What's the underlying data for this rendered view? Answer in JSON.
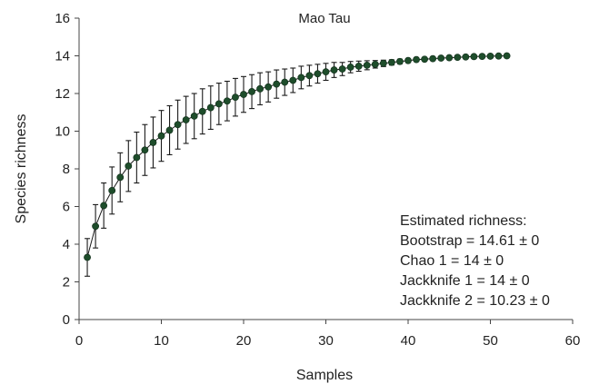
{
  "chart_data": {
    "type": "line",
    "title": "Mao Tau",
    "xlabel": "Samples",
    "ylabel": "Species richness",
    "xlim": [
      0,
      60
    ],
    "ylim": [
      0,
      16
    ],
    "xticks": [
      0,
      10,
      20,
      30,
      40,
      50,
      60
    ],
    "yticks": [
      0,
      2,
      4,
      6,
      8,
      10,
      12,
      14,
      16
    ],
    "grid": false,
    "colors": {
      "marker": "#1e4d2b",
      "line": "#1a1a1a",
      "errorbar": "#1a1a1a"
    },
    "series": [
      {
        "x": [
          1,
          2,
          3,
          4,
          5,
          6,
          7,
          8,
          9,
          10,
          11,
          12,
          13,
          14,
          15,
          16,
          17,
          18,
          19,
          20,
          21,
          22,
          23,
          24,
          25,
          26,
          27,
          28,
          29,
          30,
          31,
          32,
          33,
          34,
          35,
          36,
          37,
          38,
          39,
          40,
          41,
          42,
          43,
          44,
          45,
          46,
          47,
          48,
          49,
          50,
          51,
          52
        ],
        "y": [
          3.3,
          4.95,
          6.05,
          6.85,
          7.55,
          8.15,
          8.6,
          9.0,
          9.4,
          9.75,
          10.05,
          10.35,
          10.6,
          10.8,
          11.05,
          11.25,
          11.45,
          11.6,
          11.8,
          11.95,
          12.1,
          12.25,
          12.35,
          12.5,
          12.6,
          12.7,
          12.85,
          12.95,
          13.05,
          13.15,
          13.25,
          13.3,
          13.4,
          13.45,
          13.5,
          13.55,
          13.6,
          13.65,
          13.7,
          13.75,
          13.8,
          13.82,
          13.85,
          13.88,
          13.9,
          13.92,
          13.94,
          13.96,
          13.97,
          13.98,
          13.99,
          14.0
        ],
        "err": [
          1.0,
          1.15,
          1.2,
          1.25,
          1.3,
          1.35,
          1.35,
          1.35,
          1.35,
          1.35,
          1.3,
          1.3,
          1.25,
          1.2,
          1.2,
          1.15,
          1.1,
          1.05,
          1.0,
          0.95,
          0.9,
          0.85,
          0.8,
          0.75,
          0.7,
          0.65,
          0.6,
          0.55,
          0.5,
          0.45,
          0.4,
          0.35,
          0.3,
          0.27,
          0.24,
          0.2,
          0.17,
          0.14,
          0.12,
          0.1,
          0.08,
          0.06,
          0.05,
          0.04,
          0.03,
          0.02,
          0.01,
          0.01,
          0,
          0,
          0,
          0
        ]
      }
    ],
    "annotations": [
      "Estimated richness:",
      "Bootstrap = 14.61 ± 0",
      "Chao 1 = 14 ± 0",
      "Jackknife 1 = 14 ± 0",
      "Jackknife 2 = 10.23 ± 0"
    ]
  }
}
